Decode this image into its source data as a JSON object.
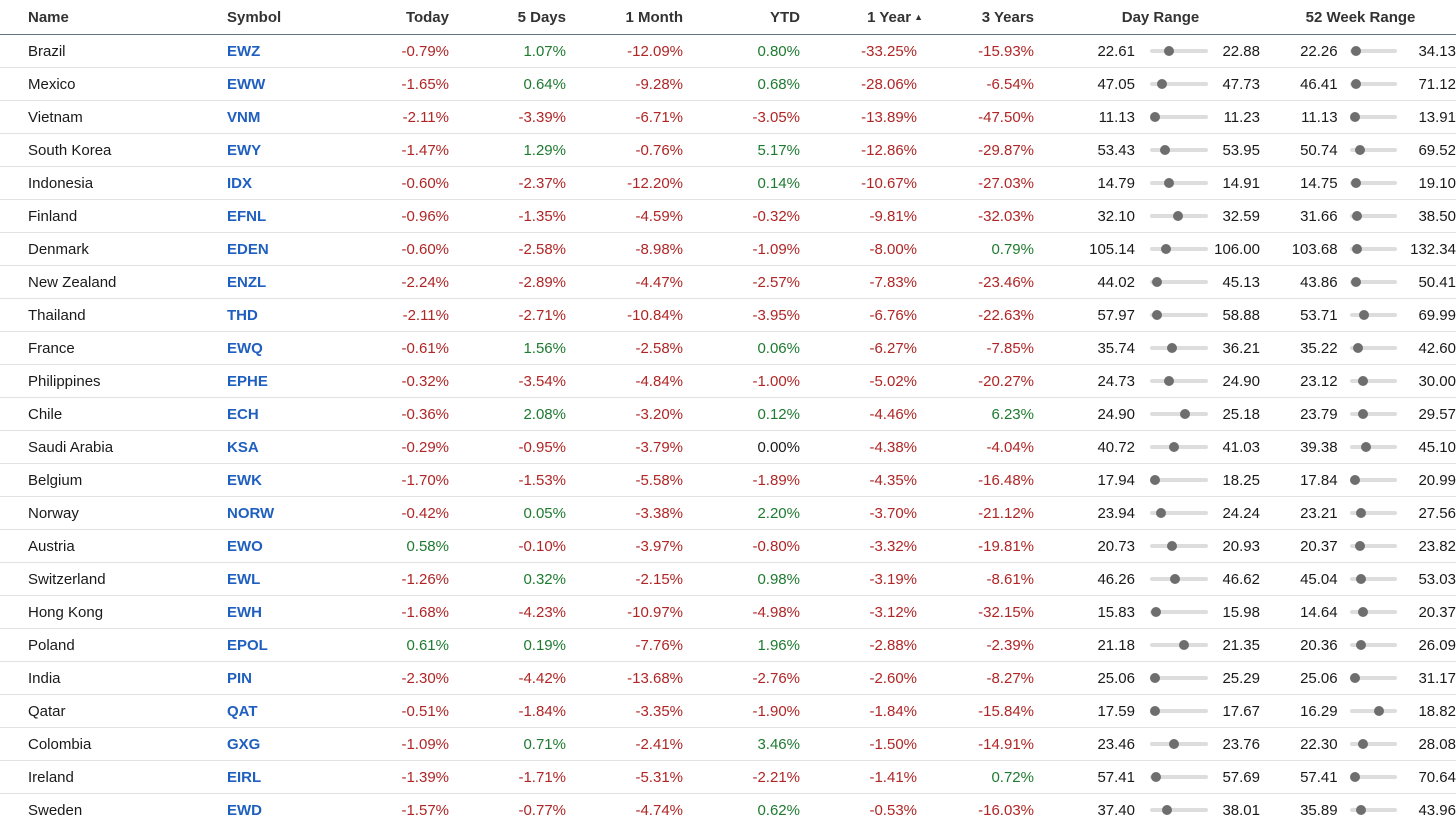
{
  "table": {
    "columns": [
      {
        "key": "name",
        "label": "Name"
      },
      {
        "key": "symbol",
        "label": "Symbol"
      },
      {
        "key": "today",
        "label": "Today"
      },
      {
        "key": "d5",
        "label": "5 Days"
      },
      {
        "key": "m1",
        "label": "1 Month"
      },
      {
        "key": "ytd",
        "label": "YTD"
      },
      {
        "key": "y1",
        "label": "1 Year",
        "sort_icon": "sort-ascending-icon",
        "sorted": true
      },
      {
        "key": "y3",
        "label": "3 Years"
      },
      {
        "key": "day_range",
        "label": "Day Range"
      },
      {
        "key": "wk52_range",
        "label": "52 Week Range"
      }
    ],
    "colors": {
      "negative": "#b02525",
      "positive": "#1e7a30",
      "link": "#1f5fbf",
      "knob": "#6e6e6e"
    },
    "rows": [
      {
        "name": "Brazil",
        "symbol": "EWZ",
        "today": "-0.79%",
        "d5": "1.07%",
        "m1": "-12.09%",
        "ytd": "0.80%",
        "y1": "-33.25%",
        "y3": "-15.93%",
        "day": {
          "low": "22.61",
          "high": "22.88",
          "pos": 0.3
        },
        "wk": {
          "low": "22.26",
          "high": "34.13",
          "pos": 0.03
        }
      },
      {
        "name": "Mexico",
        "symbol": "EWW",
        "today": "-1.65%",
        "d5": "0.64%",
        "m1": "-9.28%",
        "ytd": "0.68%",
        "y1": "-28.06%",
        "y3": "-6.54%",
        "day": {
          "low": "47.05",
          "high": "47.73",
          "pos": 0.15
        },
        "wk": {
          "low": "46.41",
          "high": "71.12",
          "pos": 0.03
        }
      },
      {
        "name": "Vietnam",
        "symbol": "VNM",
        "today": "-2.11%",
        "d5": "-3.39%",
        "m1": "-6.71%",
        "ytd": "-3.05%",
        "y1": "-13.89%",
        "y3": "-47.50%",
        "day": {
          "low": "11.13",
          "high": "11.23",
          "pos": 0.0
        },
        "wk": {
          "low": "11.13",
          "high": "13.91",
          "pos": 0.0
        }
      },
      {
        "name": "South Korea",
        "symbol": "EWY",
        "today": "-1.47%",
        "d5": "1.29%",
        "m1": "-0.76%",
        "ytd": "5.17%",
        "y1": "-12.86%",
        "y3": "-29.87%",
        "day": {
          "low": "53.43",
          "high": "53.95",
          "pos": 0.2
        },
        "wk": {
          "low": "50.74",
          "high": "69.52",
          "pos": 0.1
        }
      },
      {
        "name": "Indonesia",
        "symbol": "IDX",
        "today": "-0.60%",
        "d5": "-2.37%",
        "m1": "-12.20%",
        "ytd": "0.14%",
        "y1": "-10.67%",
        "y3": "-27.03%",
        "day": {
          "low": "14.79",
          "high": "14.91",
          "pos": 0.3
        },
        "wk": {
          "low": "14.75",
          "high": "19.10",
          "pos": 0.03
        }
      },
      {
        "name": "Finland",
        "symbol": "EFNL",
        "today": "-0.96%",
        "d5": "-1.35%",
        "m1": "-4.59%",
        "ytd": "-0.32%",
        "y1": "-9.81%",
        "y3": "-32.03%",
        "day": {
          "low": "32.10",
          "high": "32.59",
          "pos": 0.48
        },
        "wk": {
          "low": "31.66",
          "high": "38.50",
          "pos": 0.05
        }
      },
      {
        "name": "Denmark",
        "symbol": "EDEN",
        "today": "-0.60%",
        "d5": "-2.58%",
        "m1": "-8.98%",
        "ytd": "-1.09%",
        "y1": "-8.00%",
        "y3": "0.79%",
        "day": {
          "low": "105.14",
          "high": "106.00",
          "pos": 0.23
        },
        "wk": {
          "low": "103.68",
          "high": "132.34",
          "pos": 0.05
        }
      },
      {
        "name": "New Zealand",
        "symbol": "ENZL",
        "today": "-2.24%",
        "d5": "-2.89%",
        "m1": "-4.47%",
        "ytd": "-2.57%",
        "y1": "-7.83%",
        "y3": "-23.46%",
        "day": {
          "low": "44.02",
          "high": "45.13",
          "pos": 0.05
        },
        "wk": {
          "low": "43.86",
          "high": "50.41",
          "pos": 0.03
        }
      },
      {
        "name": "Thailand",
        "symbol": "THD",
        "today": "-2.11%",
        "d5": "-2.71%",
        "m1": "-10.84%",
        "ytd": "-3.95%",
        "y1": "-6.76%",
        "y3": "-22.63%",
        "day": {
          "low": "57.97",
          "high": "58.88",
          "pos": 0.05
        },
        "wk": {
          "low": "53.71",
          "high": "69.99",
          "pos": 0.2
        }
      },
      {
        "name": "France",
        "symbol": "EWQ",
        "today": "-0.61%",
        "d5": "1.56%",
        "m1": "-2.58%",
        "ytd": "0.06%",
        "y1": "-6.27%",
        "y3": "-7.85%",
        "day": {
          "low": "35.74",
          "high": "36.21",
          "pos": 0.35
        },
        "wk": {
          "low": "35.22",
          "high": "42.60",
          "pos": 0.07
        }
      },
      {
        "name": "Philippines",
        "symbol": "EPHE",
        "today": "-0.32%",
        "d5": "-3.54%",
        "m1": "-4.84%",
        "ytd": "-1.00%",
        "y1": "-5.02%",
        "y3": "-20.27%",
        "day": {
          "low": "24.73",
          "high": "24.90",
          "pos": 0.3
        },
        "wk": {
          "low": "23.12",
          "high": "30.00",
          "pos": 0.18
        }
      },
      {
        "name": "Chile",
        "symbol": "ECH",
        "today": "-0.36%",
        "d5": "2.08%",
        "m1": "-3.20%",
        "ytd": "0.12%",
        "y1": "-4.46%",
        "y3": "6.23%",
        "day": {
          "low": "24.90",
          "high": "25.18",
          "pos": 0.62
        },
        "wk": {
          "low": "23.79",
          "high": "29.57",
          "pos": 0.18
        }
      },
      {
        "name": "Saudi Arabia",
        "symbol": "KSA",
        "today": "-0.29%",
        "d5": "-0.95%",
        "m1": "-3.79%",
        "ytd": "0.00%",
        "y1": "-4.38%",
        "y3": "-4.04%",
        "day": {
          "low": "40.72",
          "high": "41.03",
          "pos": 0.4
        },
        "wk": {
          "low": "39.38",
          "high": "45.10",
          "pos": 0.24
        }
      },
      {
        "name": "Belgium",
        "symbol": "EWK",
        "today": "-1.70%",
        "d5": "-1.53%",
        "m1": "-5.58%",
        "ytd": "-1.89%",
        "y1": "-4.35%",
        "y3": "-16.48%",
        "day": {
          "low": "17.94",
          "high": "18.25",
          "pos": 0.0
        },
        "wk": {
          "low": "17.84",
          "high": "20.99",
          "pos": 0.0
        }
      },
      {
        "name": "Norway",
        "symbol": "NORW",
        "today": "-0.42%",
        "d5": "0.05%",
        "m1": "-3.38%",
        "ytd": "2.20%",
        "y1": "-3.70%",
        "y3": "-21.12%",
        "day": {
          "low": "23.94",
          "high": "24.24",
          "pos": 0.12
        },
        "wk": {
          "low": "23.21",
          "high": "27.56",
          "pos": 0.14
        }
      },
      {
        "name": "Austria",
        "symbol": "EWO",
        "today": "0.58%",
        "d5": "-0.10%",
        "m1": "-3.97%",
        "ytd": "-0.80%",
        "y1": "-3.32%",
        "y3": "-19.81%",
        "day": {
          "low": "20.73",
          "high": "20.93",
          "pos": 0.35
        },
        "wk": {
          "low": "20.37",
          "high": "23.82",
          "pos": 0.1
        }
      },
      {
        "name": "Switzerland",
        "symbol": "EWL",
        "today": "-1.26%",
        "d5": "0.32%",
        "m1": "-2.15%",
        "ytd": "0.98%",
        "y1": "-3.19%",
        "y3": "-8.61%",
        "day": {
          "low": "46.26",
          "high": "46.62",
          "pos": 0.42
        },
        "wk": {
          "low": "45.04",
          "high": "53.03",
          "pos": 0.14
        }
      },
      {
        "name": "Hong Kong",
        "symbol": "EWH",
        "today": "-1.68%",
        "d5": "-4.23%",
        "m1": "-10.97%",
        "ytd": "-4.98%",
        "y1": "-3.12%",
        "y3": "-32.15%",
        "day": {
          "low": "15.83",
          "high": "15.98",
          "pos": 0.03
        },
        "wk": {
          "low": "14.64",
          "high": "20.37",
          "pos": 0.18
        }
      },
      {
        "name": "Poland",
        "symbol": "EPOL",
        "today": "0.61%",
        "d5": "0.19%",
        "m1": "-7.76%",
        "ytd": "1.96%",
        "y1": "-2.88%",
        "y3": "-2.39%",
        "day": {
          "low": "21.18",
          "high": "21.35",
          "pos": 0.6
        },
        "wk": {
          "low": "20.36",
          "high": "26.09",
          "pos": 0.14
        }
      },
      {
        "name": "India",
        "symbol": "PIN",
        "today": "-2.30%",
        "d5": "-4.42%",
        "m1": "-13.68%",
        "ytd": "-2.76%",
        "y1": "-2.60%",
        "y3": "-8.27%",
        "day": {
          "low": "25.06",
          "high": "25.29",
          "pos": 0.0
        },
        "wk": {
          "low": "25.06",
          "high": "31.17",
          "pos": 0.0
        }
      },
      {
        "name": "Qatar",
        "symbol": "QAT",
        "today": "-0.51%",
        "d5": "-1.84%",
        "m1": "-3.35%",
        "ytd": "-1.90%",
        "y1": "-1.84%",
        "y3": "-15.84%",
        "day": {
          "low": "17.59",
          "high": "17.67",
          "pos": 0.0
        },
        "wk": {
          "low": "16.29",
          "high": "18.82",
          "pos": 0.52
        }
      },
      {
        "name": "Colombia",
        "symbol": "GXG",
        "today": "-1.09%",
        "d5": "0.71%",
        "m1": "-2.41%",
        "ytd": "3.46%",
        "y1": "-1.50%",
        "y3": "-14.91%",
        "day": {
          "low": "23.46",
          "high": "23.76",
          "pos": 0.4
        },
        "wk": {
          "low": "22.30",
          "high": "28.08",
          "pos": 0.18
        }
      },
      {
        "name": "Ireland",
        "symbol": "EIRL",
        "today": "-1.39%",
        "d5": "-1.71%",
        "m1": "-5.31%",
        "ytd": "-2.21%",
        "y1": "-1.41%",
        "y3": "0.72%",
        "day": {
          "low": "57.41",
          "high": "57.69",
          "pos": 0.03
        },
        "wk": {
          "low": "57.41",
          "high": "70.64",
          "pos": 0.0
        }
      },
      {
        "name": "Sweden",
        "symbol": "EWD",
        "today": "-1.57%",
        "d5": "-0.77%",
        "m1": "-4.74%",
        "ytd": "0.62%",
        "y1": "-0.53%",
        "y3": "-16.03%",
        "day": {
          "low": "37.40",
          "high": "38.01",
          "pos": 0.26
        },
        "wk": {
          "low": "35.89",
          "high": "43.96",
          "pos": 0.14
        }
      }
    ]
  }
}
